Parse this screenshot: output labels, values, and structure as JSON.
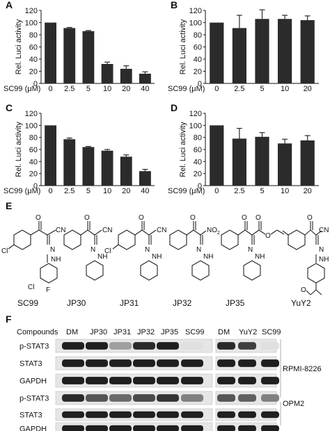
{
  "chart_data": [
    {
      "panel": "A",
      "type": "bar",
      "categories": [
        "0",
        "2.5",
        "5",
        "10",
        "20",
        "40"
      ],
      "values": [
        100,
        91,
        86,
        32,
        24,
        16
      ],
      "errors": [
        0,
        1,
        1,
        3,
        5,
        3
      ],
      "ylabel": "Rel. Luci activity",
      "xlabel": "SC99 (μM)",
      "yticks": [
        "0",
        "20",
        "40",
        "60",
        "80",
        "100",
        "120"
      ],
      "ylim": [
        0,
        120
      ]
    },
    {
      "panel": "B",
      "type": "bar",
      "categories": [
        "0",
        "2.5",
        "5",
        "10",
        "20"
      ],
      "values": [
        100,
        91,
        106,
        106,
        104
      ],
      "errors": [
        0,
        21,
        15,
        6,
        7
      ],
      "ylabel": "Rel. Luci activity",
      "xlabel": "SC99 (μM)",
      "yticks": [
        "0",
        "20",
        "40",
        "60",
        "80",
        "100",
        "120"
      ],
      "ylim": [
        0,
        120
      ]
    },
    {
      "panel": "C",
      "type": "bar",
      "categories": [
        "0",
        "2.5",
        "5",
        "10",
        "20",
        "40"
      ],
      "values": [
        100,
        77,
        64,
        58,
        48,
        24
      ],
      "errors": [
        0,
        2,
        1,
        2,
        3,
        3
      ],
      "ylabel": "Rel. Luci activity",
      "xlabel": "SC99 (μM)",
      "yticks": [
        "0",
        "20",
        "40",
        "60",
        "80",
        "100",
        "120"
      ],
      "ylim": [
        0,
        120
      ]
    },
    {
      "panel": "D",
      "type": "bar",
      "categories": [
        "0",
        "2.5",
        "5",
        "10",
        "20"
      ],
      "values": [
        100,
        78,
        81,
        70,
        75
      ],
      "errors": [
        0,
        17,
        7,
        7,
        8
      ],
      "ylabel": "Rel. Luci activity",
      "xlabel": "SC99 (μM)",
      "yticks": [
        "0",
        "20",
        "40",
        "60",
        "80",
        "100",
        "120"
      ],
      "ylim": [
        0,
        120
      ]
    }
  ],
  "panel_e": {
    "label": "E",
    "compounds": [
      "SC99",
      "JP30",
      "JP31",
      "JP32",
      "JP35",
      "YuY2"
    ],
    "atoms": {
      "cl": "Cl",
      "f": "F",
      "cn": "CN",
      "no2": "NO",
      "no2_sub": "2",
      "o": "O",
      "n": "N",
      "nh": "NH"
    }
  },
  "panel_f": {
    "label": "F",
    "header": "Compounds",
    "lanes_left": [
      "DM",
      "JP30",
      "JP31",
      "JP32",
      "JP35",
      "SC99"
    ],
    "lanes_right": [
      "DM",
      "YuY2",
      "SC99"
    ],
    "rows": [
      "p-STAT3",
      "STAT3",
      "GAPDH",
      "p-STAT3",
      "STAT3",
      "GAPDH"
    ],
    "cell_lines": [
      "RPMI-8226",
      "OPM2"
    ],
    "band_intensity_left": [
      [
        0.95,
        0.95,
        0.35,
        0.9,
        0.95,
        0.05
      ],
      [
        0.95,
        0.95,
        0.95,
        0.95,
        0.95,
        0.95
      ],
      [
        0.95,
        0.95,
        0.95,
        0.95,
        0.95,
        0.95
      ],
      [
        0.9,
        0.7,
        0.6,
        0.75,
        0.85,
        0.5
      ],
      [
        0.95,
        0.95,
        0.95,
        0.95,
        0.95,
        0.95
      ],
      [
        0.95,
        0.95,
        0.95,
        0.95,
        0.95,
        0.95
      ]
    ],
    "band_intensity_right": [
      [
        0.9,
        0.8,
        0.05
      ],
      [
        0.95,
        0.95,
        0.95
      ],
      [
        0.95,
        0.95,
        0.95
      ],
      [
        0.7,
        0.65,
        0.5
      ],
      [
        0.95,
        0.95,
        0.95
      ],
      [
        0.95,
        0.95,
        0.95
      ]
    ]
  }
}
